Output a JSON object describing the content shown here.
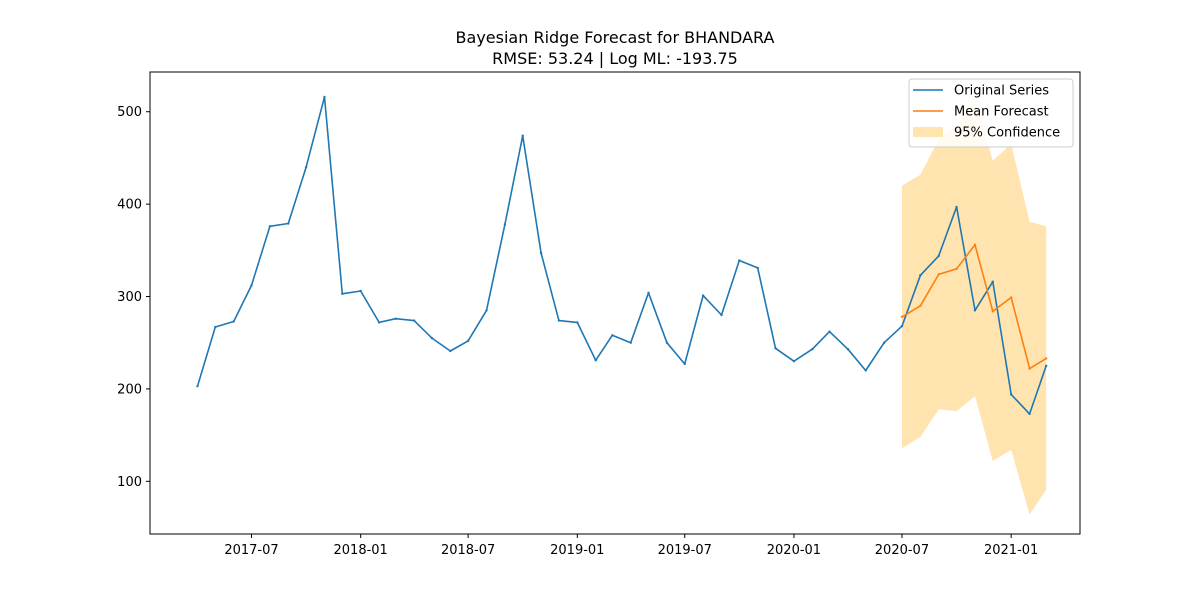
{
  "chart_data": {
    "type": "line",
    "title": "Bayesian Ridge Forecast for BHANDARA",
    "subtitle": "RMSE: 53.24 | Log ML: -193.75",
    "xlabel": "",
    "ylabel": "",
    "x_ticks": [
      "2017-07",
      "2018-01",
      "2018-07",
      "2019-01",
      "2019-07",
      "2020-01",
      "2020-07",
      "2021-01"
    ],
    "y_ticks": [
      100,
      200,
      300,
      400,
      500
    ],
    "ylim": [
      43,
      543
    ],
    "xlim": [
      "2017-01-11",
      "2021-04-27"
    ],
    "grid": false,
    "legend_position": "top-right",
    "series": [
      {
        "name": "Original Series",
        "color": "#1f77b4",
        "x": [
          "2017-04-01",
          "2017-05-01",
          "2017-06-01",
          "2017-07-01",
          "2017-08-01",
          "2017-09-01",
          "2017-10-01",
          "2017-11-01",
          "2017-12-01",
          "2018-01-01",
          "2018-02-01",
          "2018-03-01",
          "2018-04-01",
          "2018-05-01",
          "2018-06-01",
          "2018-07-01",
          "2018-08-01",
          "2018-09-01",
          "2018-10-01",
          "2018-11-01",
          "2018-12-01",
          "2019-01-01",
          "2019-02-01",
          "2019-03-01",
          "2019-04-01",
          "2019-05-01",
          "2019-06-01",
          "2019-07-01",
          "2019-08-01",
          "2019-09-01",
          "2019-10-01",
          "2019-11-01",
          "2019-12-01",
          "2020-01-01",
          "2020-02-01",
          "2020-03-01",
          "2020-04-01",
          "2020-05-01",
          "2020-06-01",
          "2020-07-01",
          "2020-08-01",
          "2020-09-01",
          "2020-10-01",
          "2020-11-01",
          "2020-12-01",
          "2021-01-01",
          "2021-02-01",
          "2021-03-01"
        ],
        "values": [
          203,
          267,
          273,
          312,
          376,
          379,
          440,
          516,
          303,
          306,
          272,
          276,
          274,
          255,
          241,
          252,
          285,
          378,
          474,
          347,
          274,
          272,
          231,
          258,
          250,
          304,
          250,
          227,
          301,
          280,
          339,
          331,
          244,
          230,
          243,
          262,
          243,
          220,
          250,
          268,
          323,
          344,
          397,
          285,
          316,
          194,
          173,
          225
        ]
      },
      {
        "name": "Mean Forecast",
        "color": "#ff7f0e",
        "x": [
          "2020-07-01",
          "2020-08-01",
          "2020-09-01",
          "2020-10-01",
          "2020-11-01",
          "2020-12-01",
          "2021-01-01",
          "2021-02-01",
          "2021-03-01"
        ],
        "values": [
          278,
          290,
          324,
          330,
          356,
          284,
          299,
          222,
          233
        ]
      }
    ],
    "band": {
      "name": "95% Confidence",
      "color": "#ffe4b0",
      "x": [
        "2020-07-01",
        "2020-08-01",
        "2020-09-01",
        "2020-10-01",
        "2020-11-01",
        "2020-12-01",
        "2021-01-01",
        "2021-02-01",
        "2021-03-01"
      ],
      "lower": [
        136,
        148,
        178,
        176,
        192,
        122,
        134,
        64,
        91
      ],
      "upper": [
        420,
        432,
        470,
        486,
        512,
        447,
        465,
        381,
        376
      ]
    }
  }
}
